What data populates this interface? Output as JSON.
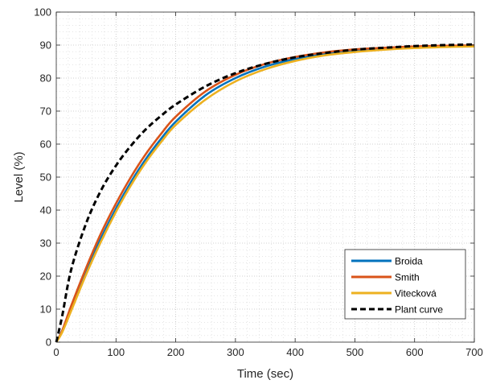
{
  "chart_data": {
    "type": "line",
    "title": "",
    "xlabel": "Time (sec)",
    "ylabel": "Level (%)",
    "xlim": [
      0,
      700
    ],
    "ylim": [
      0,
      100
    ],
    "xticks": [
      0,
      100,
      200,
      300,
      400,
      500,
      600,
      700
    ],
    "yticks": [
      0,
      10,
      20,
      30,
      40,
      50,
      60,
      70,
      80,
      90,
      100
    ],
    "grid": "major-and-minor-dotted",
    "legend_position": "bottom-right",
    "x": [
      0,
      10,
      25,
      50,
      75,
      100,
      125,
      150,
      175,
      200,
      250,
      300,
      350,
      400,
      450,
      500,
      550,
      600,
      650,
      700
    ],
    "series": [
      {
        "name": "Broida",
        "color": "#0072BD",
        "style": "solid",
        "values": [
          0,
          3.5,
          10.5,
          21.5,
          31.5,
          40.5,
          48.5,
          55.5,
          61.5,
          66.8,
          74.8,
          80.0,
          83.5,
          85.8,
          87.4,
          88.4,
          89.0,
          89.4,
          89.7,
          89.9
        ]
      },
      {
        "name": "Smith",
        "color": "#D95319",
        "style": "solid",
        "values": [
          0,
          3.5,
          11.0,
          22.5,
          33.0,
          42.0,
          50.0,
          57.0,
          63.0,
          68.3,
          76.0,
          81.0,
          84.3,
          86.4,
          87.8,
          88.7,
          89.2,
          89.6,
          89.8,
          89.9
        ]
      },
      {
        "name": "Vitecková",
        "color": "#EDB120",
        "style": "solid",
        "values": [
          0,
          3.0,
          9.5,
          20.5,
          30.5,
          39.5,
          47.5,
          54.5,
          60.5,
          65.8,
          73.5,
          79.0,
          82.7,
          85.2,
          86.9,
          87.9,
          88.6,
          89.1,
          89.4,
          89.6
        ]
      },
      {
        "name": "Plant curve",
        "color": "#000000",
        "style": "dashed",
        "values": [
          0,
          8.0,
          22.0,
          36.0,
          46.0,
          53.5,
          59.5,
          64.5,
          68.5,
          72.0,
          77.5,
          81.5,
          84.3,
          86.3,
          87.6,
          88.6,
          89.2,
          89.7,
          90.0,
          90.2
        ]
      }
    ]
  }
}
